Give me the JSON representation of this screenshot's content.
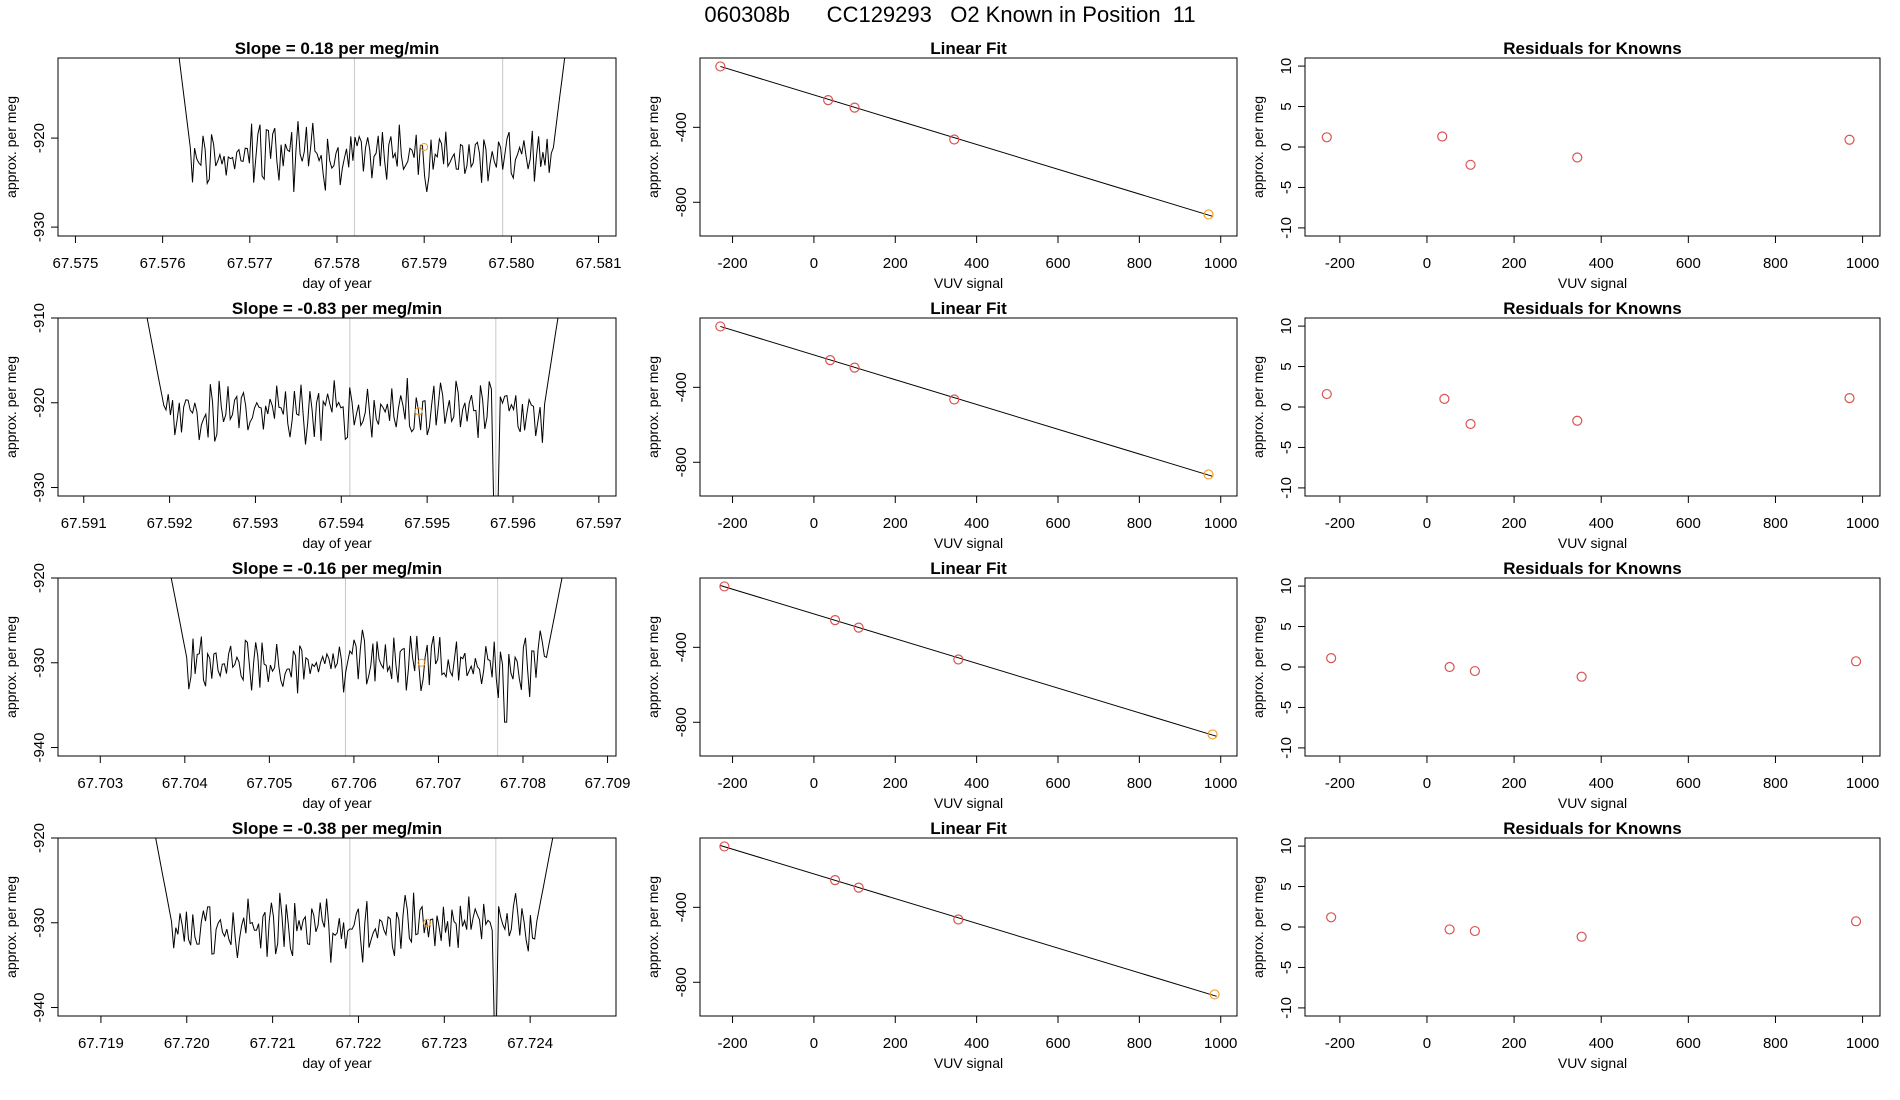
{
  "page_title": "060308b      CC129293   O2 Known in Position  11",
  "colors": {
    "line": "#000000",
    "point": "#d9534f",
    "highlight": "#f0a030",
    "vline": "#c8c8c8"
  },
  "chart_data": [
    {
      "type": "line",
      "panel": "trace-1",
      "title": "Slope =  0.18  per meg/min",
      "xlabel": "day of year",
      "ylabel": "approx. per meg",
      "xlim": [
        67.5748,
        67.5812
      ],
      "ylim": [
        -931,
        -911
      ],
      "xticks": [
        "67.575",
        "67.576",
        "67.577",
        "67.578",
        "67.579",
        "67.580",
        "67.581"
      ],
      "yticks": [
        -930,
        -920
      ],
      "x_start": 67.5761,
      "x_end": 67.5807,
      "y_start": -904,
      "y_end": -904,
      "y_base": -922,
      "y_amp": 2.6,
      "seed": 11,
      "vlines": [
        67.5782,
        67.5799
      ],
      "highlight": {
        "x": 67.579,
        "y": -921
      }
    },
    {
      "type": "line",
      "panel": "trace-2",
      "title": "Slope =  -0.83  per meg/min",
      "xlabel": "day of year",
      "ylabel": "approx. per meg",
      "xlim": [
        67.5907,
        67.5972
      ],
      "ylim": [
        -931,
        -910
      ],
      "xticks": [
        "67.591",
        "67.592",
        "67.593",
        "67.594",
        "67.595",
        "67.596",
        "67.597"
      ],
      "yticks": [
        -930,
        -920,
        -910
      ],
      "x_start": 67.5917,
      "x_end": 67.5966,
      "y_start": -908,
      "y_end": -905,
      "y_base": -921,
      "y_amp": 2.5,
      "seed": 23,
      "vlines": [
        67.5941,
        67.5958
      ],
      "dip": {
        "x": 67.5958,
        "y": -931.5
      },
      "highlight": {
        "x": 67.5949,
        "y": -921
      }
    },
    {
      "type": "line",
      "panel": "trace-3",
      "title": "Slope =  -0.16  per meg/min",
      "xlabel": "day of year",
      "ylabel": "approx. per meg",
      "xlim": [
        67.7025,
        67.7091
      ],
      "ylim": [
        -941,
        -920
      ],
      "xticks": [
        "67.703",
        "67.704",
        "67.705",
        "67.706",
        "67.707",
        "67.708",
        "67.709"
      ],
      "yticks": [
        -940,
        -930,
        -920
      ],
      "x_start": 67.7038,
      "x_end": 67.7085,
      "y_start": -918,
      "y_end": -918,
      "y_base": -930,
      "y_amp": 2.6,
      "seed": 37,
      "vlines": [
        67.7059,
        67.7077
      ],
      "dip": {
        "x": 67.7078,
        "y": -937
      },
      "highlight": {
        "x": 67.7068,
        "y": -930
      }
    },
    {
      "type": "line",
      "panel": "trace-4",
      "title": "Slope =  -0.38  per meg/min",
      "xlabel": "day of year",
      "ylabel": "approx. per meg",
      "xlim": [
        67.7185,
        67.725
      ],
      "ylim": [
        -941,
        -920
      ],
      "xticks": [
        "67.719",
        "67.720",
        "67.721",
        "67.722",
        "67.723",
        "67.724"
      ],
      "yticks": [
        -940,
        -930,
        -920
      ],
      "x_start": 67.7196,
      "x_end": 67.7243,
      "y_start": -918,
      "y_end": -918,
      "y_base": -930.5,
      "y_amp": 2.7,
      "seed": 53,
      "vlines": [
        67.7219,
        67.7236
      ],
      "dip": {
        "x": 67.7236,
        "y": -942
      },
      "highlight": {
        "x": 67.7228,
        "y": -930
      }
    },
    {
      "type": "scatter",
      "panel": "fit-1",
      "title": "Linear Fit",
      "xlabel": "VUV signal",
      "ylabel": "approx. per meg",
      "xlim": [
        -280,
        1040
      ],
      "ylim": [
        -980,
        -30
      ],
      "xticks": [
        -200,
        0,
        200,
        400,
        600,
        800,
        1000
      ],
      "yticks": [
        -400,
        -800
      ],
      "points": [
        [
          -230,
          -75
        ],
        [
          35,
          -255
        ],
        [
          100,
          -295
        ],
        [
          345,
          -465
        ],
        [
          970,
          -865
        ]
      ],
      "line": [
        [
          -230,
          -75
        ],
        [
          980,
          -875
        ]
      ],
      "highlight_index": 4
    },
    {
      "type": "scatter",
      "panel": "fit-2",
      "title": "Linear Fit",
      "xlabel": "VUV signal",
      "ylabel": "approx. per meg",
      "xlim": [
        -280,
        1040
      ],
      "ylim": [
        -980,
        -30
      ],
      "xticks": [
        -200,
        0,
        200,
        400,
        600,
        800,
        1000
      ],
      "yticks": [
        -400,
        -800
      ],
      "points": [
        [
          -230,
          -75
        ],
        [
          40,
          -255
        ],
        [
          100,
          -295
        ],
        [
          345,
          -465
        ],
        [
          970,
          -865
        ]
      ],
      "line": [
        [
          -230,
          -75
        ],
        [
          980,
          -875
        ]
      ],
      "highlight_index": 4
    },
    {
      "type": "scatter",
      "panel": "fit-3",
      "title": "Linear Fit",
      "xlabel": "VUV signal",
      "ylabel": "approx. per meg",
      "xlim": [
        -280,
        1040
      ],
      "ylim": [
        -980,
        -30
      ],
      "xticks": [
        -200,
        0,
        200,
        400,
        600,
        800,
        1000
      ],
      "yticks": [
        -400,
        -800
      ],
      "points": [
        [
          -220,
          -75
        ],
        [
          52,
          -255
        ],
        [
          110,
          -295
        ],
        [
          355,
          -465
        ],
        [
          980,
          -865
        ]
      ],
      "line": [
        [
          -230,
          -70
        ],
        [
          990,
          -875
        ]
      ],
      "highlight_index": 4
    },
    {
      "type": "scatter",
      "panel": "fit-4",
      "title": "Linear Fit",
      "xlabel": "VUV signal",
      "ylabel": "approx. per meg",
      "xlim": [
        -280,
        1040
      ],
      "ylim": [
        -980,
        -30
      ],
      "xticks": [
        -200,
        0,
        200,
        400,
        600,
        800,
        1000
      ],
      "yticks": [
        -400,
        -800
      ],
      "points": [
        [
          -220,
          -75
        ],
        [
          52,
          -255
        ],
        [
          110,
          -295
        ],
        [
          355,
          -465
        ],
        [
          985,
          -865
        ]
      ],
      "line": [
        [
          -230,
          -70
        ],
        [
          990,
          -875
        ]
      ],
      "highlight_index": 4
    },
    {
      "type": "scatter",
      "panel": "resid-1",
      "title": "Residuals for Knowns",
      "xlabel": "VUV signal",
      "ylabel": "approx. per meg",
      "xlim": [
        -280,
        1040
      ],
      "ylim": [
        -11,
        11
      ],
      "xticks": [
        -200,
        0,
        200,
        400,
        600,
        800,
        1000
      ],
      "yticks": [
        -10,
        -5,
        0,
        5,
        10
      ],
      "points": [
        [
          -230,
          1.2
        ],
        [
          35,
          1.3
        ],
        [
          100,
          -2.2
        ],
        [
          345,
          -1.3
        ],
        [
          970,
          0.9
        ]
      ]
    },
    {
      "type": "scatter",
      "panel": "resid-2",
      "title": "Residuals for Knowns",
      "xlabel": "VUV signal",
      "ylabel": "approx. per meg",
      "xlim": [
        -280,
        1040
      ],
      "ylim": [
        -11,
        11
      ],
      "xticks": [
        -200,
        0,
        200,
        400,
        600,
        800,
        1000
      ],
      "yticks": [
        -10,
        -5,
        0,
        5,
        10
      ],
      "points": [
        [
          -230,
          1.6
        ],
        [
          40,
          1.0
        ],
        [
          100,
          -2.1
        ],
        [
          345,
          -1.7
        ],
        [
          970,
          1.1
        ]
      ]
    },
    {
      "type": "scatter",
      "panel": "resid-3",
      "title": "Residuals for Knowns",
      "xlabel": "VUV signal",
      "ylabel": "approx. per meg",
      "xlim": [
        -280,
        1040
      ],
      "ylim": [
        -11,
        11
      ],
      "xticks": [
        -200,
        0,
        200,
        400,
        600,
        800,
        1000
      ],
      "yticks": [
        -10,
        -5,
        0,
        5,
        10
      ],
      "points": [
        [
          -220,
          1.1
        ],
        [
          52,
          0.0
        ],
        [
          110,
          -0.5
        ],
        [
          355,
          -1.2
        ],
        [
          985,
          0.7
        ]
      ]
    },
    {
      "type": "scatter",
      "panel": "resid-4",
      "title": "Residuals for Knowns",
      "xlabel": "VUV signal",
      "ylabel": "approx. per meg",
      "xlim": [
        -280,
        1040
      ],
      "ylim": [
        -11,
        11
      ],
      "xticks": [
        -200,
        0,
        200,
        400,
        600,
        800,
        1000
      ],
      "yticks": [
        -10,
        -5,
        0,
        5,
        10
      ],
      "points": [
        [
          -220,
          1.2
        ],
        [
          52,
          -0.3
        ],
        [
          110,
          -0.5
        ],
        [
          355,
          -1.2
        ],
        [
          985,
          0.7
        ]
      ]
    }
  ]
}
